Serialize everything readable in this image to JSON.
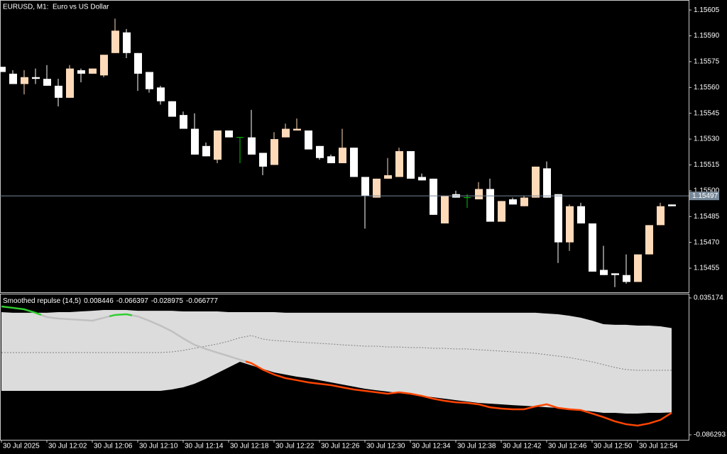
{
  "chart_data": [
    {
      "type": "candlestick",
      "title": "EURUSD, M1:  Euro vs US Dollar",
      "categories": [
        "30 Jul 2025",
        null,
        null,
        null,
        "30 Jul 12:02",
        null,
        null,
        null,
        "30 Jul 12:06",
        null,
        null,
        null,
        "30 Jul 12:10",
        null,
        null,
        null,
        "30 Jul 12:14",
        null,
        null,
        null,
        "30 Jul 12:18",
        null,
        null,
        null,
        "30 Jul 12:22",
        null,
        null,
        null,
        "30 Jul 12:26",
        null,
        null,
        null,
        "30 Jul 12:30",
        null,
        null,
        null,
        "30 Jul 12:34",
        null,
        null,
        null,
        "30 Jul 12:38",
        null,
        null,
        null,
        "30 Jul 12:42",
        null,
        null,
        null,
        "30 Jul 12:46",
        null,
        null,
        null,
        "30 Jul 12:50",
        null,
        null,
        null,
        "30 Jul 12:54",
        null,
        null,
        null
      ],
      "open": [
        1.15572,
        1.15568,
        1.15562,
        1.15566,
        1.15565,
        1.15561,
        1.15554,
        1.1557,
        1.15568,
        1.15567,
        1.1558,
        1.15592,
        1.1558,
        1.15569,
        1.1556,
        1.15552,
        1.15544,
        1.15536,
        1.15526,
        1.15518,
        1.15535,
        1.15531,
        1.15531,
        1.15522,
        1.15515,
        1.15531,
        1.15535,
        1.15535,
        1.15526,
        1.1552,
        1.15516,
        1.15525,
        1.15508,
        1.15496,
        1.15507,
        1.15508,
        1.15523,
        1.15508,
        1.15507,
        1.15481,
        1.15498,
        1.15496,
        1.15495,
        1.15501,
        1.15482,
        1.15495,
        1.15491,
        1.15496,
        1.15513,
        1.15498,
        1.1547,
        1.15491,
        1.15481,
        1.15454,
        1.15452,
        1.15451,
        1.15447,
        1.15463,
        1.1548,
        1.15492
      ],
      "high": [
        1.15572,
        1.1557,
        1.1557,
        1.15571,
        1.15573,
        1.15565,
        1.15573,
        1.15571,
        1.15571,
        1.15579,
        1.156,
        1.15594,
        1.1558,
        1.15569,
        1.15561,
        1.15552,
        1.15546,
        1.15545,
        1.15528,
        1.15535,
        1.15535,
        1.15531,
        1.15547,
        1.15522,
        1.15534,
        1.15539,
        1.15542,
        1.15535,
        1.15526,
        1.15521,
        1.15536,
        1.15525,
        1.15508,
        1.15507,
        1.15519,
        1.15525,
        1.15523,
        1.1551,
        1.15507,
        1.15497,
        1.155,
        1.15498,
        1.15505,
        1.15507,
        1.15494,
        1.15496,
        1.15497,
        1.15514,
        1.15517,
        1.15498,
        1.15492,
        1.15493,
        1.15481,
        1.15468,
        1.15452,
        1.15463,
        1.15463,
        1.1548,
        1.15493,
        1.15492
      ],
      "low": [
        1.15569,
        1.15562,
        1.15556,
        1.15562,
        1.15561,
        1.15549,
        1.15554,
        1.15563,
        1.15568,
        1.15566,
        1.1558,
        1.15577,
        1.15558,
        1.15557,
        1.1555,
        1.15543,
        1.15536,
        1.15521,
        1.1552,
        1.15516,
        1.15531,
        1.15516,
        1.15521,
        1.15509,
        1.15515,
        1.15531,
        1.15535,
        1.15524,
        1.15518,
        1.15516,
        1.15516,
        1.15508,
        1.15478,
        1.15496,
        1.15507,
        1.15508,
        1.15507,
        1.15506,
        1.15486,
        1.15481,
        1.15496,
        1.1549,
        1.15495,
        1.15482,
        1.15482,
        1.15492,
        1.15491,
        1.15496,
        1.15496,
        1.15458,
        1.15465,
        1.15481,
        1.15453,
        1.15451,
        1.15444,
        1.15446,
        1.15447,
        1.15463,
        1.1548,
        1.15491
      ],
      "close": [
        1.15569,
        1.15562,
        1.15566,
        1.15565,
        1.15561,
        1.15554,
        1.15571,
        1.15568,
        1.15571,
        1.15579,
        1.15593,
        1.1558,
        1.15568,
        1.15559,
        1.15552,
        1.15543,
        1.15536,
        1.15521,
        1.1552,
        1.15535,
        1.15531,
        1.15531,
        1.15521,
        1.15514,
        1.1553,
        1.15536,
        1.15536,
        1.15524,
        1.15519,
        1.15516,
        1.15525,
        1.15508,
        1.15497,
        1.15507,
        1.15509,
        1.15523,
        1.15507,
        1.15506,
        1.15486,
        1.15497,
        1.15496,
        1.15496,
        1.15501,
        1.15482,
        1.15494,
        1.15492,
        1.15496,
        1.15514,
        1.15496,
        1.1547,
        1.15491,
        1.15481,
        1.15453,
        1.15451,
        1.15451,
        1.15447,
        1.15463,
        1.1548,
        1.15491,
        1.15491
      ],
      "up_color": "#ffdab9",
      "down_color": "#ffffff",
      "doji_color": "#00c800",
      "current_price": 1.15497,
      "current_price_color": "#778899",
      "ylim": [
        1.15441,
        1.1561
      ],
      "yticks": [
        {
          "value": 1.15605,
          "label": "1.15605"
        },
        {
          "value": 1.1559,
          "label": "1.15590"
        },
        {
          "value": 1.15575,
          "label": "1.15575"
        },
        {
          "value": 1.1556,
          "label": "1.15560"
        },
        {
          "value": 1.15545,
          "label": "1.15545"
        },
        {
          "value": 1.1553,
          "label": "1.15530"
        },
        {
          "value": 1.15515,
          "label": "1.15515"
        },
        {
          "value": 1.155,
          "label": "1.15500"
        },
        {
          "value": 1.15485,
          "label": "1.15485"
        },
        {
          "value": 1.1547,
          "label": "1.15470"
        },
        {
          "value": 1.15455,
          "label": "1.15455"
        }
      ]
    },
    {
      "type": "band-line",
      "title": "Smoothed repulse (14,5)",
      "band_fill_color": "#dcdcdc",
      "series": [
        {
          "values": [
            0.0226,
            0.022,
            0.022,
            0.022,
            0.022,
            0.0226,
            0.0226,
            0.0232,
            0.0238,
            0.0245,
            0.0245,
            0.0245,
            0.0238,
            0.0238,
            0.0238,
            0.0238,
            0.0232,
            0.0232,
            0.0232,
            0.0232,
            0.0226,
            0.0226,
            0.0226,
            0.0226,
            0.0226,
            0.022,
            0.022,
            0.022,
            0.022,
            0.022,
            0.022,
            0.022,
            0.022,
            0.022,
            0.022,
            0.022,
            0.022,
            0.022,
            0.022,
            0.022,
            0.022,
            0.022,
            0.022,
            0.022,
            0.022,
            0.022,
            0.022,
            0.022,
            0.0213,
            0.0207,
            0.0194,
            0.0176,
            0.015,
            0.0119,
            0.0113,
            0.0113,
            0.0106,
            0.0106,
            0.01,
            0.008446
          ]
        },
        {
          "values": [
            -0.0473,
            -0.0473,
            -0.0473,
            -0.0473,
            -0.0473,
            -0.0473,
            -0.0473,
            -0.0473,
            -0.0473,
            -0.0473,
            -0.0473,
            -0.0473,
            -0.0473,
            -0.0473,
            -0.0473,
            -0.046,
            -0.0441,
            -0.041,
            -0.0366,
            -0.0315,
            -0.0265,
            -0.0215,
            -0.0246,
            -0.0278,
            -0.0309,
            -0.0328,
            -0.0347,
            -0.036,
            -0.0378,
            -0.0397,
            -0.0416,
            -0.0435,
            -0.0454,
            -0.0467,
            -0.0479,
            -0.0492,
            -0.0504,
            -0.0517,
            -0.0529,
            -0.0542,
            -0.0555,
            -0.0567,
            -0.058,
            -0.0586,
            -0.0592,
            -0.0599,
            -0.0605,
            -0.0611,
            -0.0618,
            -0.0624,
            -0.063,
            -0.0643,
            -0.0655,
            -0.0668,
            -0.0668,
            -0.0674,
            -0.0674,
            -0.0668,
            -0.0668,
            -0.066397
          ]
        },
        {
          "color": "#808080",
          "dashed": true,
          "values": [
            -0.0133,
            -0.0133,
            -0.0133,
            -0.0133,
            -0.0133,
            -0.0133,
            -0.0133,
            -0.0133,
            -0.0133,
            -0.0133,
            -0.0133,
            -0.0133,
            -0.0133,
            -0.0133,
            -0.0133,
            -0.0127,
            -0.0114,
            -0.0095,
            -0.0076,
            -0.0057,
            -0.0032,
            -0.0001,
            0.0018,
            -0.0013,
            -0.0026,
            -0.0032,
            -0.0039,
            -0.0045,
            -0.0051,
            -0.0057,
            -0.0064,
            -0.007,
            -0.0076,
            -0.0076,
            -0.0083,
            -0.0083,
            -0.0089,
            -0.0089,
            -0.0095,
            -0.0095,
            -0.0101,
            -0.0101,
            -0.0108,
            -0.0114,
            -0.012,
            -0.0127,
            -0.0133,
            -0.0139,
            -0.0152,
            -0.0164,
            -0.0177,
            -0.0196,
            -0.0215,
            -0.024,
            -0.0265,
            -0.0284,
            -0.029,
            -0.029,
            -0.029,
            -0.028975
          ]
        },
        {
          "colors": [
            "#32cd32",
            "#32cd32",
            "#32cd32",
            "#32cd32",
            "#c0c0c0",
            "#c0c0c0",
            "#c0c0c0",
            "#c0c0c0",
            "#c0c0c0",
            "#c0c0c0",
            "#32cd32",
            "#32cd32",
            "#c0c0c0",
            "#c0c0c0",
            "#c0c0c0",
            "#c0c0c0",
            "#c0c0c0",
            "#c0c0c0",
            "#c0c0c0",
            "#c0c0c0",
            "#c0c0c0",
            "#c0c0c0",
            "#ff4500",
            "#ff4500",
            "#ff4500",
            "#ff4500",
            "#ff4500",
            "#ff4500",
            "#ff4500",
            "#ff4500",
            "#ff4500",
            "#ff4500",
            "#ff4500",
            "#ff4500",
            "#ff4500",
            "#ff4500",
            "#ff4500",
            "#ff4500",
            "#ff4500",
            "#ff4500",
            "#ff4500",
            "#ff4500",
            "#ff4500",
            "#ff4500",
            "#ff4500",
            "#ff4500",
            "#ff4500",
            "#ff4500",
            "#ff4500",
            "#ff4500",
            "#ff4500",
            "#ff4500",
            "#ff4500",
            "#ff4500",
            "#ff4500",
            "#ff4500",
            "#ff4500",
            "#ff4500",
            "#ff4500",
            "#ff4500"
          ],
          "values": [
            0.0276,
            0.0264,
            0.0251,
            0.022,
            0.0182,
            0.0169,
            0.0163,
            0.0157,
            0.015,
            0.0176,
            0.0201,
            0.0207,
            0.0188,
            0.015,
            0.0106,
            0.0056,
            -0.0007,
            -0.0064,
            -0.0101,
            -0.0133,
            -0.0164,
            -0.0196,
            -0.0227,
            -0.0284,
            -0.0328,
            -0.036,
            -0.0378,
            -0.0397,
            -0.041,
            -0.0422,
            -0.0441,
            -0.046,
            -0.0473,
            -0.0485,
            -0.0498,
            -0.0485,
            -0.0498,
            -0.0517,
            -0.0542,
            -0.0561,
            -0.0574,
            -0.058,
            -0.0592,
            -0.0618,
            -0.063,
            -0.0636,
            -0.0636,
            -0.0611,
            -0.0592,
            -0.0624,
            -0.0636,
            -0.0643,
            -0.0674,
            -0.0706,
            -0.0743,
            -0.0769,
            -0.0781,
            -0.0762,
            -0.0731,
            -0.066777
          ]
        }
      ],
      "ylim": [
        -0.086293,
        0.035174
      ],
      "yticks": [
        0.035174,
        -0.086293
      ]
    }
  ]
}
